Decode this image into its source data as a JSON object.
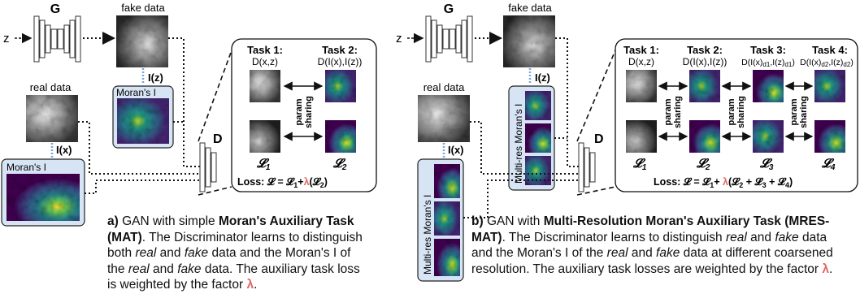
{
  "colors": {
    "box_fill": "#d6e4f4",
    "box_stroke": "#222222",
    "dotted_link": "#7aa3d8",
    "lambda": "#e06666",
    "viridis": [
      "#440154",
      "#482777",
      "#3f4a8a",
      "#31678e",
      "#26838f",
      "#1f9d8a",
      "#6cce5a",
      "#b6de2b",
      "#fee825"
    ]
  },
  "panel_a": {
    "generator_label": "G",
    "z_label": "z",
    "fake_data_label": "fake data",
    "real_data_label": "real data",
    "iz_label": "I(z)",
    "ix_label": "I(x)",
    "morans_label_fake": "Moran's I",
    "morans_label_real": "Moran's I",
    "discriminator_label": "D",
    "task1_title": "Task 1:",
    "task1_sub": "D(x,z)",
    "task2_title": "Task 2:",
    "task2_sub": "D(I(x),I(z))",
    "param_sharing": [
      "param",
      "sharing"
    ],
    "loss1": "𝓛",
    "loss1_sub": "1",
    "loss2": "𝓛",
    "loss2_sub": "2",
    "loss_formula_prefix": "Loss: 𝓛 = 𝓛",
    "loss_formula_sub1": "1",
    "loss_formula_plus": "+",
    "loss_formula_lambda": "λ",
    "loss_formula_open": "(𝓛",
    "loss_formula_sub2": "2",
    "loss_formula_close": ")",
    "caption": {
      "label": "a)",
      "t1": " GAN with simple  ",
      "b1": "Moran's Auxiliary Task (MAT)",
      "t2": ". The Discriminator learns to distinguish both ",
      "i1": "real",
      "t3": " and ",
      "i2": "fake",
      "t4": " data and the Moran's I of the ",
      "i3": "real",
      "t5": " and ",
      "i4": "fake",
      "t6": " data. The auxiliary task loss is weighted by the factor ",
      "lam": "λ",
      "t7": "."
    }
  },
  "panel_b": {
    "generator_label": "G",
    "z_label": "z",
    "fake_data_label": "fake data",
    "real_data_label": "real data",
    "iz_label": "I(z)",
    "ix_label": "I(x)",
    "multires_label_fake": "Multi-res Moran's I",
    "multires_label_real": "Multi-res Moran's I",
    "discriminator_label": "D",
    "task1_title": "Task 1:",
    "task1_sub": "D(x,z)",
    "task2_title": "Task 2:",
    "task2_sub": "D(I(x),I(z))",
    "task3_title": "Task 3:",
    "task3_sub_a": "D(I(x)",
    "task3_sub_b": "d1",
    "task3_sub_c": ",I(z)",
    "task3_sub_d": "d1",
    "task3_sub_e": ")",
    "task4_title": "Task 4:",
    "task4_sub_a": "D(I(x)",
    "task4_sub_b": "d2",
    "task4_sub_c": ",I(z)",
    "task4_sub_d": "d2",
    "task4_sub_e": ")",
    "param_sharing": [
      "param",
      "sharing"
    ],
    "loss1": "𝓛",
    "loss1_sub": "1",
    "loss2": "𝓛",
    "loss2_sub": "2",
    "loss3": "𝓛",
    "loss3_sub": "3",
    "loss4": "𝓛",
    "loss4_sub": "4",
    "loss_formula_prefix": "Loss: 𝓛 = 𝓛",
    "loss_formula_sub1": "1",
    "loss_formula_plus": "+ ",
    "loss_formula_lambda": "λ",
    "loss_formula_open": "(𝓛",
    "loss_formula_sub2": "2",
    "loss_formula_mid1": " + 𝓛",
    "loss_formula_sub3": "3",
    "loss_formula_mid2": " + 𝓛",
    "loss_formula_sub4": "4",
    "loss_formula_close": ")",
    "caption": {
      "label": "b)",
      "t1": " GAN with ",
      "b1": "Multi-Resolution Moran's Auxiliary Task (MRES-MAT)",
      "t2": ". The Discriminator learns to distinguish ",
      "i1": "real",
      "t3": " and ",
      "i2": "fake",
      "t4": " data and the Moran's I of the ",
      "i3": "real",
      "t5": " and ",
      "i4": "fake",
      "t6": " data at different coarsened resolution. The auxiliary task losses are weighted by the factor ",
      "lam": "λ",
      "t7": "."
    }
  }
}
